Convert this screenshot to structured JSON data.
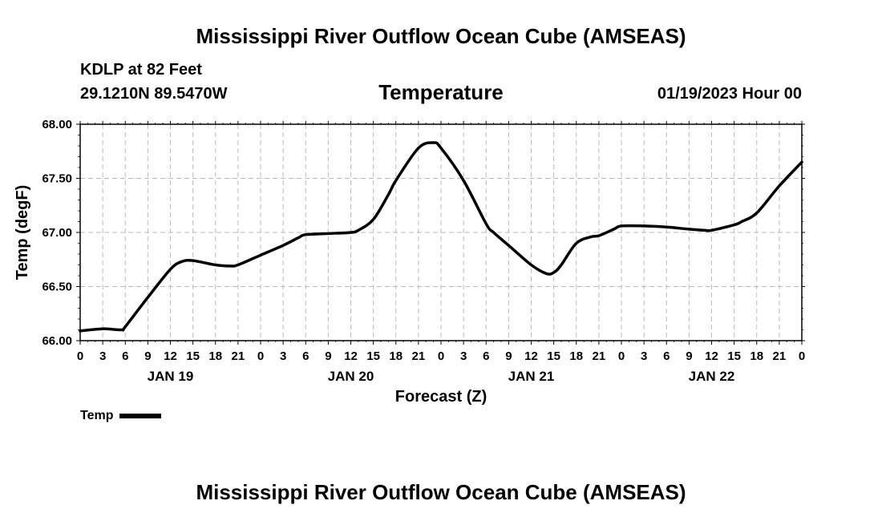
{
  "header": {
    "title": "Mississippi River Outflow Ocean Cube (AMSEAS)",
    "station": "KDLP at 82 Feet",
    "coordinates": "29.1210N  89.5470W",
    "variable": "Temperature",
    "run_time": "01/19/2023 Hour 00"
  },
  "footer": {
    "title": "Mississippi River Outflow Ocean Cube (AMSEAS)"
  },
  "legend": {
    "label": "Temp"
  },
  "colors": {
    "line": "#000000",
    "grid": "#bbbbbb",
    "axis": "#000000"
  },
  "chart_data": {
    "type": "line",
    "title": "Temperature",
    "xlabel": "Forecast (Z)",
    "ylabel": "Temp (degF)",
    "xlim": [
      0,
      96
    ],
    "ylim": [
      66.0,
      68.0
    ],
    "grid": true,
    "legend_position": "bottom-left",
    "x_tick_hours": [
      0,
      3,
      6,
      9,
      12,
      15,
      18,
      21,
      24,
      27,
      30,
      33,
      36,
      39,
      42,
      45,
      48,
      51,
      54,
      57,
      60,
      63,
      66,
      69,
      72,
      75,
      78,
      81,
      84,
      87,
      90,
      93,
      96
    ],
    "x_tick_labels": [
      "0",
      "3",
      "6",
      "9",
      "12",
      "15",
      "18",
      "21",
      "0",
      "3",
      "6",
      "9",
      "12",
      "15",
      "18",
      "21",
      "0",
      "3",
      "6",
      "9",
      "12",
      "15",
      "18",
      "21",
      "0",
      "3",
      "6",
      "9",
      "12",
      "15",
      "18",
      "21",
      "0"
    ],
    "y_tick_values": [
      66.0,
      66.5,
      67.0,
      67.5,
      68.0
    ],
    "y_tick_labels": [
      "66.00",
      "66.50",
      "67.00",
      "67.50",
      "68.00"
    ],
    "day_labels": [
      {
        "hour": 12,
        "label": "JAN 19"
      },
      {
        "hour": 36,
        "label": "JAN 20"
      },
      {
        "hour": 60,
        "label": "JAN 21"
      },
      {
        "hour": 84,
        "label": "JAN 22"
      }
    ],
    "series": [
      {
        "name": "Temp",
        "x": [
          0,
          3,
          5.5,
          6,
          9,
          12,
          13.5,
          15,
          18,
          20,
          21,
          24,
          27,
          29,
          30,
          33,
          36,
          37,
          39,
          41,
          42,
          45,
          47,
          48,
          51,
          54,
          55,
          57,
          60,
          62,
          63,
          64,
          66,
          68,
          69,
          71,
          72,
          75,
          78,
          81,
          83,
          84,
          87,
          88,
          90,
          93,
          96
        ],
        "y": [
          66.09,
          66.11,
          66.1,
          66.13,
          66.4,
          66.66,
          66.73,
          66.74,
          66.7,
          66.69,
          66.7,
          66.79,
          66.88,
          66.95,
          66.98,
          66.99,
          67.0,
          67.02,
          67.12,
          67.35,
          67.48,
          67.78,
          67.83,
          67.78,
          67.48,
          67.08,
          67.0,
          66.88,
          66.7,
          66.62,
          66.63,
          66.7,
          66.9,
          66.96,
          66.97,
          67.03,
          67.06,
          67.06,
          67.05,
          67.03,
          67.02,
          67.02,
          67.07,
          67.1,
          67.18,
          67.43,
          67.65
        ]
      }
    ]
  }
}
